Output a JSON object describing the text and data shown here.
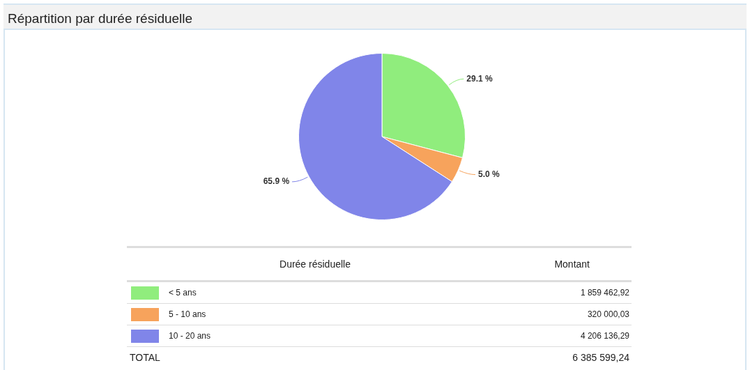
{
  "chart_data": {
    "type": "pie",
    "title": "Répartition par durée résiduelle",
    "categories": [
      "< 5 ans",
      "5 - 10 ans",
      "10 - 20 ans"
    ],
    "values": [
      29.1,
      5.0,
      65.9
    ],
    "colors": [
      "#90ed7d",
      "#f7a35c",
      "#8085e9"
    ],
    "value_labels": [
      "29.1 %",
      "5.0 %",
      "65.9 %"
    ],
    "legend": "bottom",
    "annotations": [
      "Durée résiduelle",
      "Montant",
      "1 859 462,92",
      "320 000,03",
      "4 206 136,29",
      "TOTAL",
      "6 385 599,24"
    ]
  }
}
